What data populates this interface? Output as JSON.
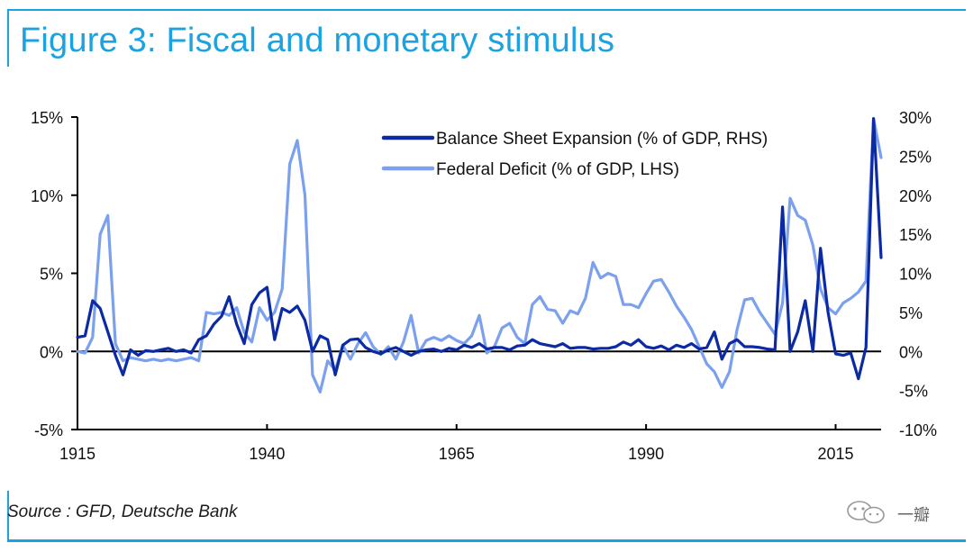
{
  "header": {
    "title": "Figure 3: Fiscal and monetary stimulus"
  },
  "footer": {
    "source": "Source : GFD, Deutsche Bank",
    "watermark": "一瓣"
  },
  "colors": {
    "accent": "#1aa3e0",
    "balance": "#0b2aa3",
    "deficit": "#7ba0ee",
    "axis": "#000000"
  },
  "chart_data": {
    "type": "line",
    "title": "",
    "xlabel": "",
    "ylabel": "",
    "x_ticks": [
      "1915",
      "1940",
      "1965",
      "1990",
      "2015"
    ],
    "xlim": [
      1915,
      2021
    ],
    "y_left": {
      "ticks": [
        "15%",
        "10%",
        "5%",
        "0%",
        "-5%"
      ],
      "lim": [
        -5,
        15
      ]
    },
    "y_right": {
      "ticks": [
        "30%",
        "25%",
        "20%",
        "15%",
        "10%",
        "5%",
        "0%",
        "-5%",
        "-10%"
      ],
      "lim": [
        -10,
        30
      ]
    },
    "legend": {
      "placement": "top-center"
    },
    "series": [
      {
        "name": "Balance Sheet Expansion (% of GDP, RHS)",
        "axis": "right",
        "color": "#0b2aa3",
        "x": [
          1915,
          1916,
          1917,
          1918,
          1919,
          1920,
          1921,
          1922,
          1923,
          1924,
          1925,
          1926,
          1927,
          1928,
          1929,
          1930,
          1931,
          1932,
          1933,
          1934,
          1935,
          1936,
          1937,
          1938,
          1939,
          1940,
          1941,
          1942,
          1943,
          1944,
          1945,
          1946,
          1947,
          1948,
          1949,
          1950,
          1951,
          1952,
          1953,
          1954,
          1955,
          1956,
          1957,
          1958,
          1959,
          1960,
          1961,
          1962,
          1963,
          1964,
          1965,
          1966,
          1967,
          1968,
          1969,
          1970,
          1971,
          1972,
          1973,
          1974,
          1975,
          1976,
          1977,
          1978,
          1979,
          1980,
          1981,
          1982,
          1983,
          1984,
          1985,
          1986,
          1987,
          1988,
          1989,
          1990,
          1991,
          1992,
          1993,
          1994,
          1995,
          1996,
          1997,
          1998,
          1999,
          2000,
          2001,
          2002,
          2003,
          2004,
          2005,
          2006,
          2007,
          2008,
          2009,
          2010,
          2011,
          2012,
          2013,
          2014,
          2015,
          2016,
          2017,
          2018,
          2019,
          2020,
          2021
        ],
        "values": [
          1.8,
          2.0,
          6.5,
          5.5,
          2.5,
          -0.5,
          -3.0,
          0.2,
          -0.5,
          0.1,
          0.0,
          0.2,
          0.4,
          0.0,
          0.2,
          -0.2,
          1.5,
          2.0,
          3.5,
          4.5,
          7.0,
          3.5,
          1.0,
          6.0,
          7.5,
          8.2,
          1.5,
          5.5,
          5.0,
          5.8,
          4.0,
          0.0,
          2.0,
          1.5,
          -3.0,
          0.8,
          1.5,
          1.6,
          0.5,
          0.0,
          -0.3,
          0.2,
          0.5,
          0.0,
          -0.5,
          0.0,
          0.2,
          0.3,
          0.0,
          0.4,
          0.2,
          0.8,
          0.5,
          1.0,
          0.3,
          0.5,
          0.5,
          0.2,
          0.7,
          0.8,
          1.5,
          1.0,
          0.8,
          0.6,
          1.0,
          0.4,
          0.5,
          0.5,
          0.3,
          0.4,
          0.4,
          0.6,
          1.2,
          0.8,
          1.5,
          0.6,
          0.4,
          0.7,
          0.2,
          0.8,
          0.5,
          1.0,
          0.3,
          0.5,
          2.5,
          -1.0,
          1.0,
          1.5,
          0.6,
          0.6,
          0.5,
          0.3,
          0.2,
          18.5,
          0.0,
          2.5,
          6.5,
          0.0,
          13.2,
          5.0,
          -0.3,
          -0.5,
          -0.2,
          -3.5,
          0.5,
          29.8,
          12.0
        ]
      },
      {
        "name": "Federal Deficit (% of GDP, LHS)",
        "axis": "left",
        "color": "#7ba0ee",
        "x": [
          1915,
          1916,
          1917,
          1918,
          1919,
          1920,
          1921,
          1922,
          1923,
          1924,
          1925,
          1926,
          1927,
          1928,
          1929,
          1930,
          1931,
          1932,
          1933,
          1934,
          1935,
          1936,
          1937,
          1938,
          1939,
          1940,
          1941,
          1942,
          1943,
          1944,
          1945,
          1946,
          1947,
          1948,
          1949,
          1950,
          1951,
          1952,
          1953,
          1954,
          1955,
          1956,
          1957,
          1958,
          1959,
          1960,
          1961,
          1962,
          1963,
          1964,
          1965,
          1966,
          1967,
          1968,
          1969,
          1970,
          1971,
          1972,
          1973,
          1974,
          1975,
          1976,
          1977,
          1978,
          1979,
          1980,
          1981,
          1982,
          1983,
          1984,
          1985,
          1986,
          1987,
          1988,
          1989,
          1990,
          1991,
          1992,
          1993,
          1994,
          1995,
          1996,
          1997,
          1998,
          1999,
          2000,
          2001,
          2002,
          2003,
          2004,
          2005,
          2006,
          2007,
          2008,
          2009,
          2010,
          2011,
          2012,
          2013,
          2014,
          2015,
          2016,
          2017,
          2018,
          2019,
          2020,
          2021
        ],
        "values": [
          0.0,
          -0.1,
          0.9,
          7.5,
          8.7,
          0.5,
          -0.6,
          -0.4,
          -0.5,
          -0.6,
          -0.5,
          -0.6,
          -0.5,
          -0.6,
          -0.5,
          -0.4,
          -0.6,
          2.5,
          2.4,
          2.5,
          2.3,
          2.8,
          1.2,
          0.6,
          2.8,
          2.0,
          2.5,
          4.0,
          12.0,
          13.5,
          10.0,
          -1.5,
          -2.6,
          -0.6,
          -1.2,
          0.4,
          -0.5,
          0.5,
          1.2,
          0.3,
          -0.2,
          0.3,
          -0.5,
          0.6,
          2.3,
          -0.1,
          0.7,
          0.9,
          0.7,
          1.0,
          0.7,
          0.5,
          1.0,
          2.3,
          -0.1,
          0.3,
          1.5,
          1.8,
          0.9,
          0.5,
          3.0,
          3.5,
          2.7,
          2.6,
          1.8,
          2.6,
          2.4,
          3.4,
          5.7,
          4.7,
          5.0,
          4.8,
          3.0,
          3.0,
          2.8,
          3.7,
          4.5,
          4.6,
          3.8,
          2.9,
          2.2,
          1.4,
          0.3,
          -0.8,
          -1.3,
          -2.3,
          -1.3,
          1.4,
          3.3,
          3.4,
          2.5,
          1.8,
          1.1,
          3.1,
          9.8,
          8.7,
          8.4,
          6.8,
          4.0,
          2.8,
          2.4,
          3.1,
          3.4,
          3.8,
          4.5,
          14.9,
          12.4
        ]
      }
    ]
  }
}
